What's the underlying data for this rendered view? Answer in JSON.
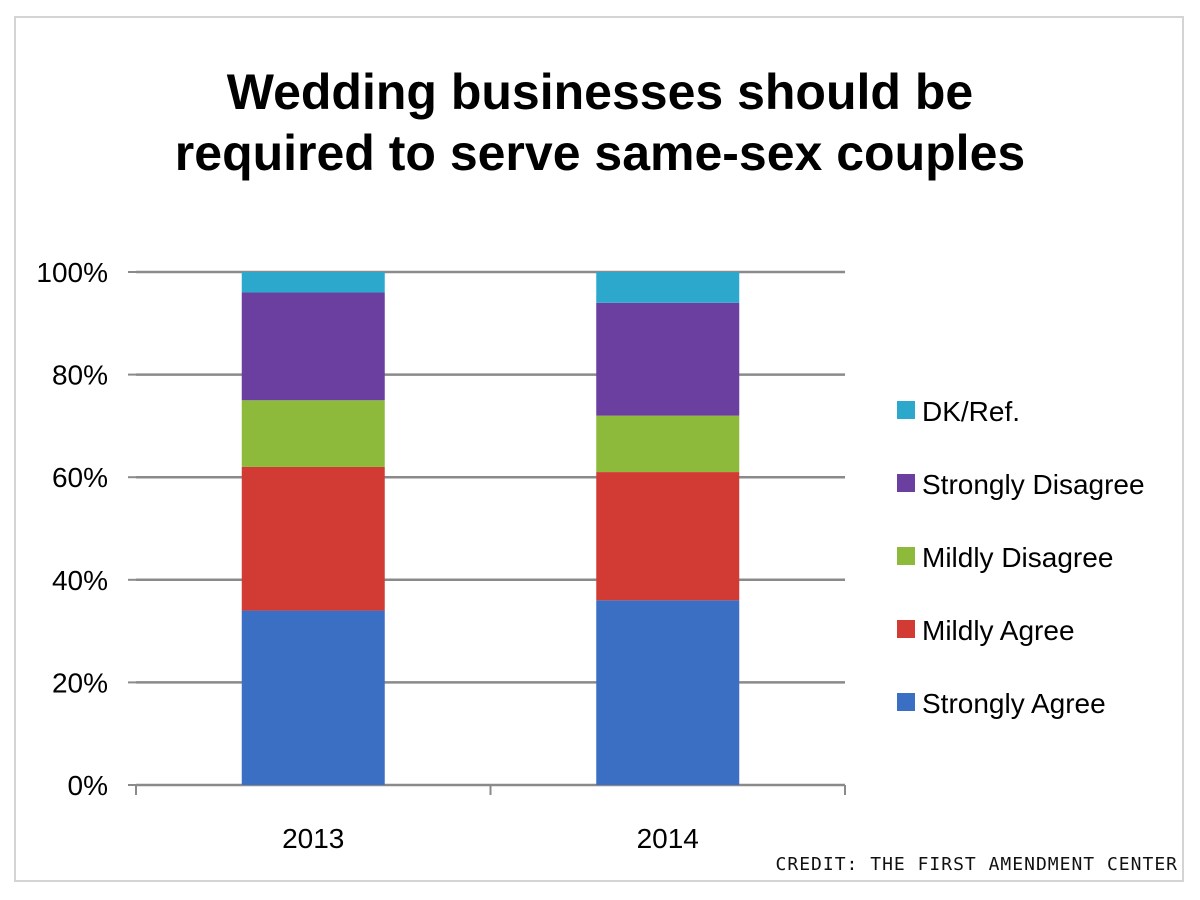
{
  "credit": "CREDIT: THE FIRST AMENDMENT CENTER",
  "chart_data": {
    "type": "bar",
    "stacked": true,
    "title": "Wedding businesses should be\nrequired to serve same-sex couples",
    "xlabel": "",
    "ylabel": "",
    "categories": [
      "2013",
      "2014"
    ],
    "ylim": [
      0,
      100
    ],
    "yticks": [
      0,
      20,
      40,
      60,
      80,
      100
    ],
    "ytick_labels": [
      "0%",
      "20%",
      "40%",
      "60%",
      "80%",
      "100%"
    ],
    "grid": true,
    "legend_position": "right",
    "series": [
      {
        "name": "Strongly Agree",
        "color": "#3b6fc4",
        "values": [
          34,
          36
        ]
      },
      {
        "name": "Mildly Agree",
        "color": "#d23a34",
        "values": [
          28,
          25
        ]
      },
      {
        "name": "Mildly Disagree",
        "color": "#8dba3a",
        "values": [
          13,
          11
        ]
      },
      {
        "name": "Strongly Disagree",
        "color": "#6a3fa0",
        "values": [
          21,
          22
        ]
      },
      {
        "name": "DK/Ref.",
        "color": "#2ba8cc",
        "values": [
          4,
          6
        ]
      }
    ]
  }
}
